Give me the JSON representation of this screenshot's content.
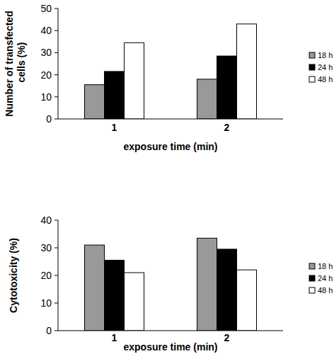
{
  "chart_data": [
    {
      "type": "bar",
      "y_label": "Number of transfected cells (%)",
      "x_label": "exposure time (min)",
      "categories": [
        "1",
        "2"
      ],
      "series": [
        {
          "name": "18 h",
          "color": "#999999",
          "values": [
            15.5,
            18
          ]
        },
        {
          "name": "24 h",
          "color": "#000000",
          "values": [
            21.5,
            28.5
          ]
        },
        {
          "name": "48 h",
          "color": "#ffffff",
          "values": [
            34.5,
            43
          ]
        }
      ],
      "ylim": [
        0,
        50
      ],
      "yticks": [
        0,
        10,
        20,
        30,
        40,
        50
      ],
      "grid": false,
      "legend": "right"
    },
    {
      "type": "bar",
      "y_label": "Cytotoxicity (%)",
      "x_label": "exposure time (min)",
      "categories": [
        "1",
        "2"
      ],
      "series": [
        {
          "name": "18 h",
          "color": "#999999",
          "values": [
            31,
            33.5
          ]
        },
        {
          "name": "24 h",
          "color": "#000000",
          "values": [
            25.5,
            29.5
          ]
        },
        {
          "name": "48 h",
          "color": "#ffffff",
          "values": [
            21,
            22
          ]
        }
      ],
      "ylim": [
        0,
        40
      ],
      "yticks": [
        0,
        10,
        20,
        30,
        40
      ],
      "grid": false,
      "legend": "right"
    }
  ]
}
